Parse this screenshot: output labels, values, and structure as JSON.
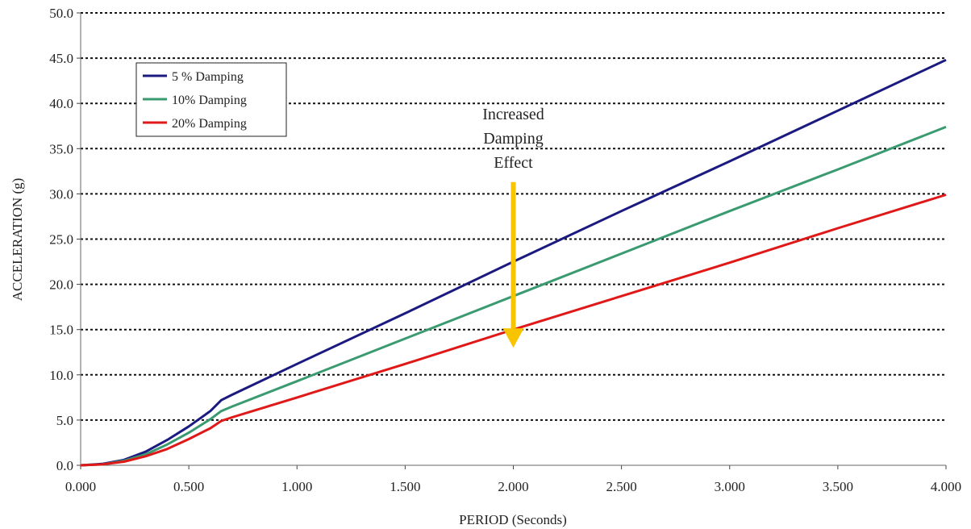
{
  "chart_data": {
    "type": "line",
    "xlabel": "PERIOD (Seconds)",
    "ylabel": "ACCELERATION (g)",
    "xlim": [
      0,
      4
    ],
    "ylim": [
      0,
      50
    ],
    "x_ticks": [
      "0.000",
      "0.500",
      "1.000",
      "1.500",
      "2.000",
      "2.500",
      "3.000",
      "3.500",
      "4.000"
    ],
    "y_ticks": [
      "0.0",
      "5.0",
      "10.0",
      "15.0",
      "20.0",
      "25.0",
      "30.0",
      "35.0",
      "40.0",
      "45.0",
      "50.0"
    ],
    "grid": "horizontal dotted",
    "legend_position": "top-left",
    "series": [
      {
        "name": "5 % Damping",
        "color": "#1a1a80",
        "points": [
          [
            0,
            0
          ],
          [
            0.1,
            0.15
          ],
          [
            0.2,
            0.6
          ],
          [
            0.3,
            1.5
          ],
          [
            0.4,
            2.8
          ],
          [
            0.5,
            4.3
          ],
          [
            0.6,
            6.0
          ],
          [
            0.65,
            7.2
          ],
          [
            0.7,
            7.8
          ],
          [
            1.0,
            11.2
          ],
          [
            1.5,
            16.8
          ],
          [
            2.0,
            22.5
          ],
          [
            2.5,
            28.1
          ],
          [
            3.0,
            33.6
          ],
          [
            3.5,
            39.2
          ],
          [
            4.0,
            44.8
          ]
        ]
      },
      {
        "name": "10% Damping",
        "color": "#3a9a70",
        "points": [
          [
            0,
            0
          ],
          [
            0.1,
            0.1
          ],
          [
            0.2,
            0.5
          ],
          [
            0.3,
            1.2
          ],
          [
            0.4,
            2.3
          ],
          [
            0.5,
            3.6
          ],
          [
            0.6,
            5.1
          ],
          [
            0.65,
            6.0
          ],
          [
            0.7,
            6.5
          ],
          [
            1.0,
            9.3
          ],
          [
            1.5,
            14.0
          ],
          [
            2.0,
            18.7
          ],
          [
            2.5,
            23.4
          ],
          [
            3.0,
            28.1
          ],
          [
            3.5,
            32.7
          ],
          [
            4.0,
            37.4
          ]
        ]
      },
      {
        "name": "20% Damping",
        "color": "#e01818",
        "points": [
          [
            0,
            0
          ],
          [
            0.1,
            0.1
          ],
          [
            0.2,
            0.4
          ],
          [
            0.3,
            1.0
          ],
          [
            0.4,
            1.8
          ],
          [
            0.5,
            2.9
          ],
          [
            0.6,
            4.1
          ],
          [
            0.65,
            4.9
          ],
          [
            0.7,
            5.3
          ],
          [
            1.0,
            7.5
          ],
          [
            1.5,
            11.2
          ],
          [
            2.0,
            15.0
          ],
          [
            2.5,
            18.7
          ],
          [
            3.0,
            22.4
          ],
          [
            3.5,
            26.2
          ],
          [
            4.0,
            29.9
          ]
        ]
      }
    ],
    "annotations": [
      {
        "lines": [
          "Increased",
          "Damping",
          "Effect"
        ],
        "arrow": {
          "color": "#f8c400",
          "x": 2.0,
          "from_y": 31.3,
          "to_y": 13.0
        }
      }
    ]
  }
}
